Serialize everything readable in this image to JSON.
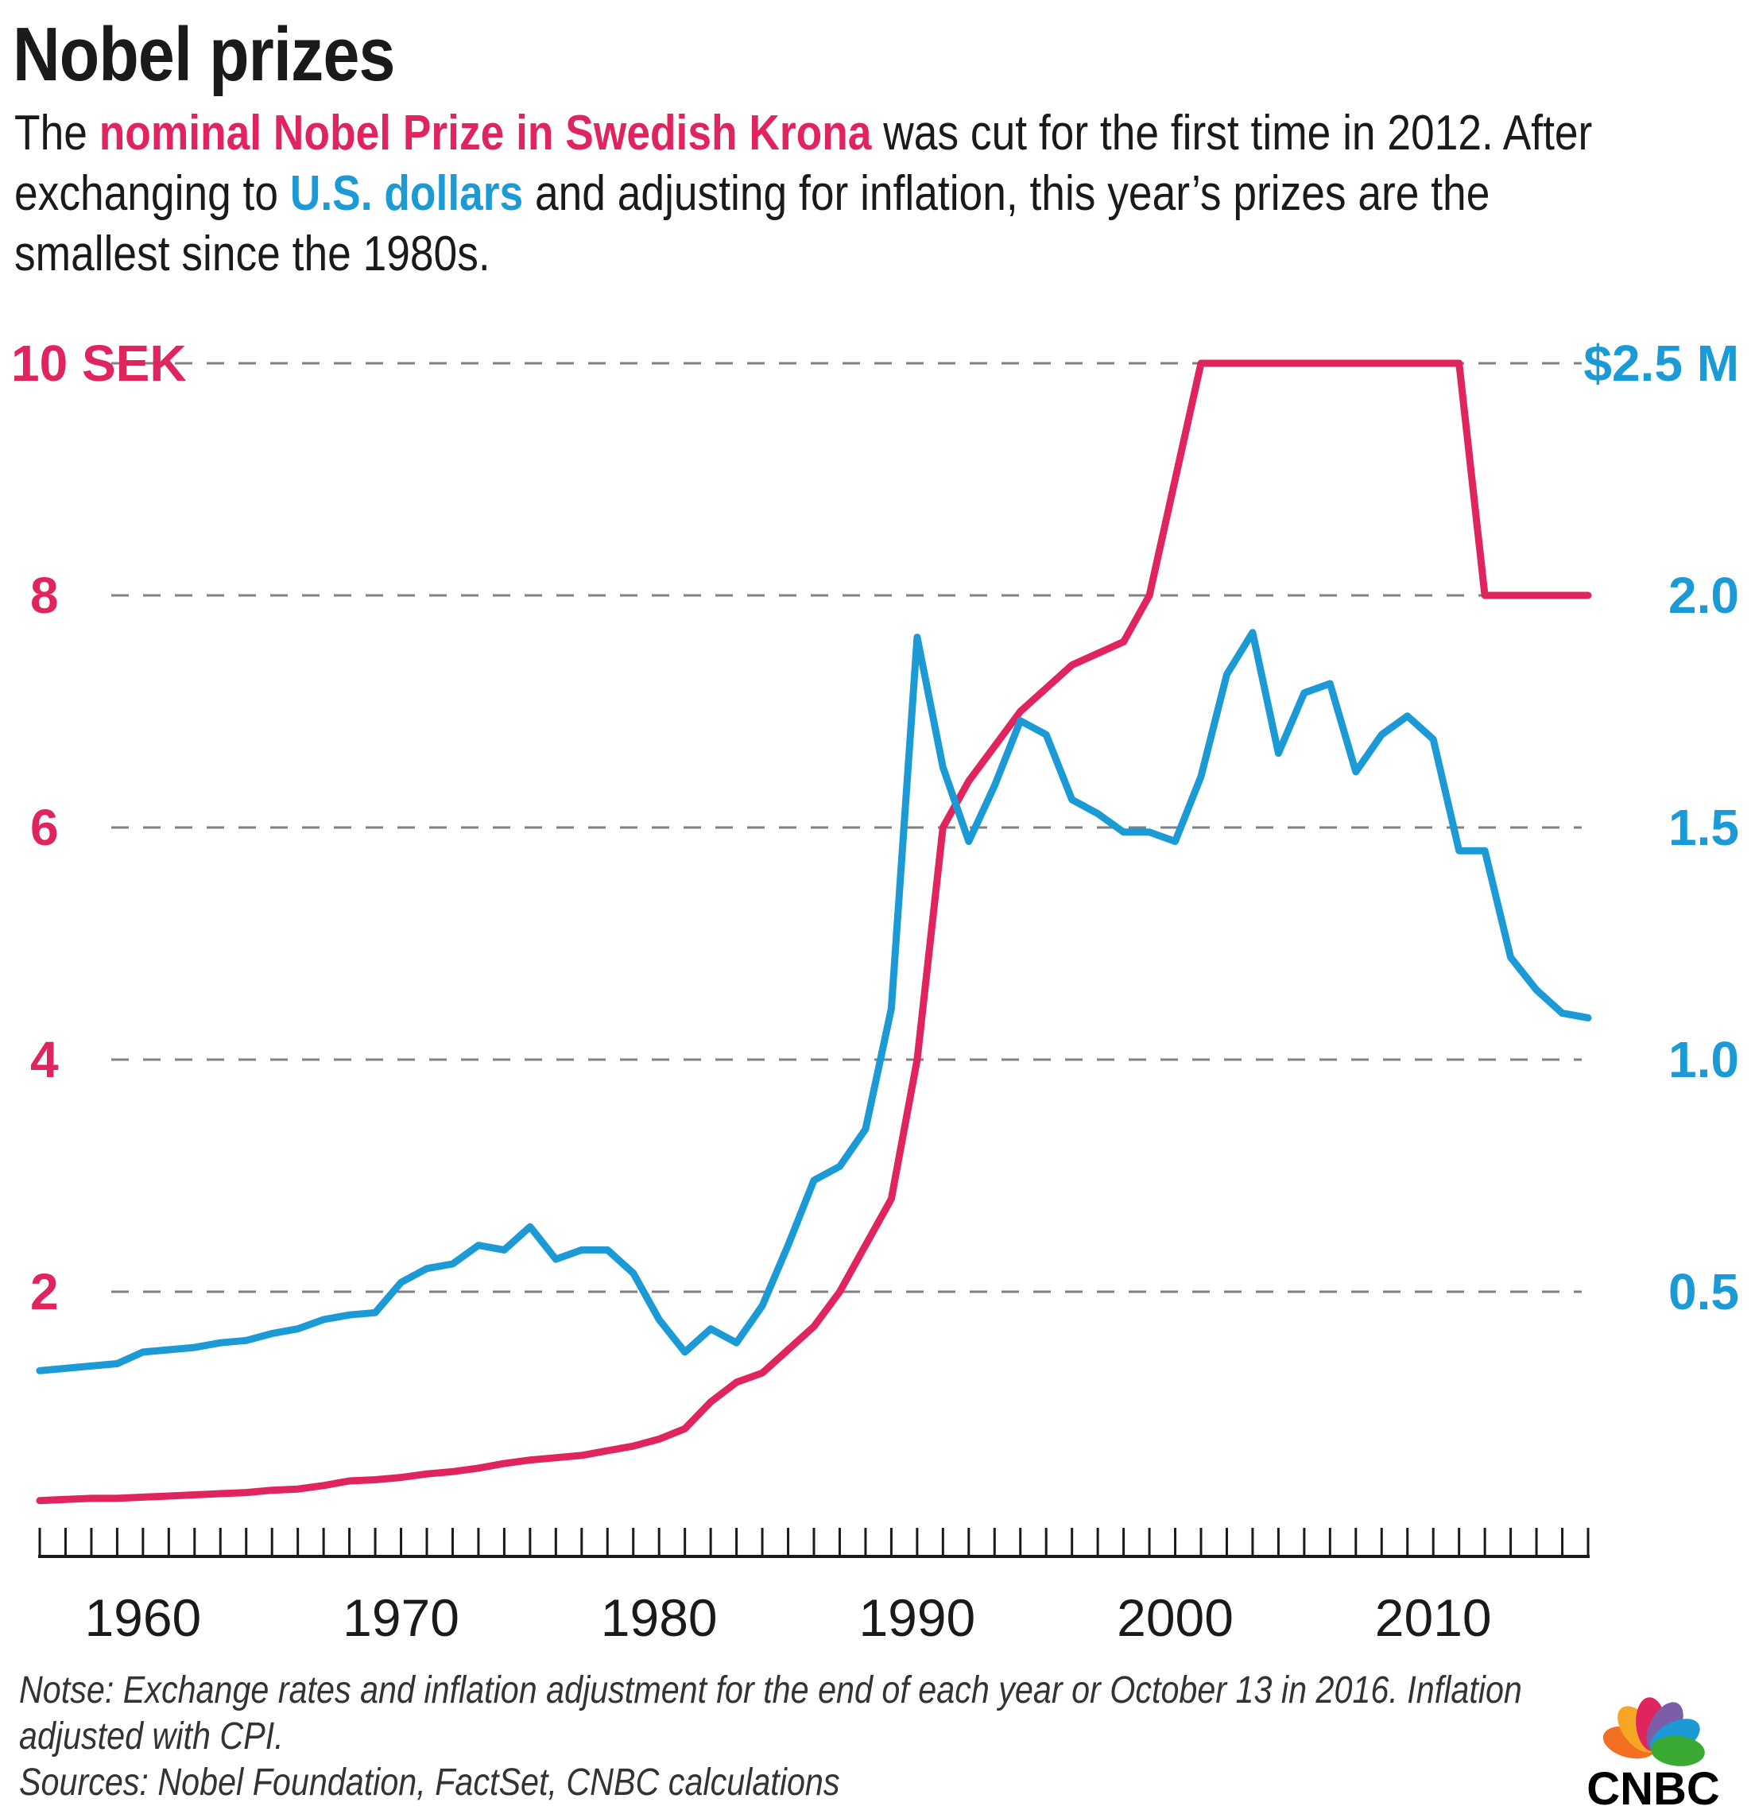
{
  "header": {
    "title": "Nobel prizes",
    "subtitle_parts": {
      "p1": "The ",
      "p2": "nominal Nobel Prize in Swedish Krona",
      "p3": " was cut for the first time in 2012. After exchanging to ",
      "p4": "U.S. dollars",
      "p5": " and adjusting for inflation, this year’s prizes are the smallest since the 1980s."
    }
  },
  "footer": {
    "note": "Notse: Exchange rates and inflation adjustment for the end of each year or October 13 in 2016. Inflation adjusted with CPI.",
    "sources": "Sources: Nobel Foundation, FactSet, CNBC calculations"
  },
  "logo": {
    "text": "CNBC",
    "colors": [
      "#f5a623",
      "#e0245e",
      "#7b5ea7",
      "#1b9ad6",
      "#3aaa35",
      "#f36f21"
    ]
  },
  "colors": {
    "sek": "#e0245e",
    "usd": "#1b9ad6",
    "grid": "#808080",
    "axis": "#1a1a1a"
  },
  "chart_data": {
    "type": "line",
    "grid": true,
    "x_ticks": [
      1960,
      1970,
      1980,
      1990,
      2000,
      2010
    ],
    "xlim": [
      1956,
      2016
    ],
    "y_left": {
      "ticks": [
        2,
        4,
        6,
        8,
        10
      ],
      "tick_labels": [
        "2",
        "4",
        "6",
        "8",
        "10 SEK"
      ],
      "ylim": [
        0,
        10
      ]
    },
    "y_right": {
      "ticks": [
        0.5,
        1.0,
        1.5,
        2.0,
        2.5
      ],
      "tick_labels": [
        "0.5",
        "1.0",
        "1.5",
        "2.0",
        "$2.5 M"
      ],
      "ylim": [
        0,
        2.5
      ]
    },
    "series": [
      {
        "name": "nominal Nobel Prize in Swedish Krona",
        "axis": "left",
        "color": "#e0245e",
        "x": [
          1956,
          1957,
          1958,
          1959,
          1960,
          1961,
          1962,
          1963,
          1964,
          1965,
          1966,
          1967,
          1968,
          1969,
          1970,
          1971,
          1972,
          1973,
          1974,
          1975,
          1976,
          1977,
          1978,
          1979,
          1980,
          1981,
          1982,
          1983,
          1984,
          1985,
          1986,
          1987,
          1988,
          1989,
          1990,
          1991,
          1992,
          1993,
          1994,
          1995,
          1996,
          1997,
          1998,
          1999,
          2000,
          2001,
          2002,
          2003,
          2004,
          2005,
          2006,
          2007,
          2008,
          2009,
          2010,
          2011,
          2012,
          2013,
          2014,
          2015,
          2016
        ],
        "values": [
          0.2,
          0.21,
          0.22,
          0.22,
          0.23,
          0.24,
          0.25,
          0.26,
          0.27,
          0.29,
          0.3,
          0.33,
          0.37,
          0.38,
          0.4,
          0.43,
          0.45,
          0.48,
          0.52,
          0.55,
          0.57,
          0.59,
          0.63,
          0.67,
          0.73,
          0.82,
          1.05,
          1.22,
          1.3,
          1.5,
          1.7,
          2.0,
          2.4,
          2.8,
          4.0,
          6.0,
          6.4,
          6.7,
          7.0,
          7.2,
          7.4,
          7.5,
          7.6,
          8.0,
          9.0,
          10.0,
          10.0,
          10.0,
          10.0,
          10.0,
          10.0,
          10.0,
          10.0,
          10.0,
          10.0,
          10.0,
          8.0,
          8.0,
          8.0,
          8.0,
          8.0
        ]
      },
      {
        "name": "U.S. dollars",
        "axis": "right",
        "color": "#1b9ad6",
        "x": [
          1956,
          1957,
          1958,
          1959,
          1960,
          1961,
          1962,
          1963,
          1964,
          1965,
          1966,
          1967,
          1968,
          1969,
          1970,
          1971,
          1972,
          1973,
          1974,
          1975,
          1976,
          1977,
          1978,
          1979,
          1980,
          1981,
          1982,
          1983,
          1984,
          1985,
          1986,
          1987,
          1988,
          1989,
          1990,
          1991,
          1992,
          1993,
          1994,
          1995,
          1996,
          1997,
          1998,
          1999,
          2000,
          2001,
          2002,
          2003,
          2004,
          2005,
          2006,
          2007,
          2008,
          2009,
          2010,
          2011,
          2012,
          2013,
          2014,
          2015,
          2016
        ],
        "values": [
          0.33,
          0.335,
          0.34,
          0.345,
          0.37,
          0.375,
          0.38,
          0.39,
          0.395,
          0.41,
          0.42,
          0.44,
          0.45,
          0.455,
          0.52,
          0.55,
          0.56,
          0.6,
          0.59,
          0.64,
          0.57,
          0.59,
          0.59,
          0.54,
          0.44,
          0.37,
          0.42,
          0.39,
          0.47,
          0.6,
          0.74,
          0.77,
          0.85,
          1.11,
          1.91,
          1.63,
          1.47,
          1.59,
          1.73,
          1.7,
          1.56,
          1.53,
          1.49,
          1.49,
          1.47,
          1.61,
          1.83,
          1.92,
          1.66,
          1.79,
          1.81,
          1.62,
          1.7,
          1.74,
          1.69,
          1.45,
          1.45,
          1.22,
          1.15,
          1.1,
          1.09
        ]
      }
    ]
  }
}
